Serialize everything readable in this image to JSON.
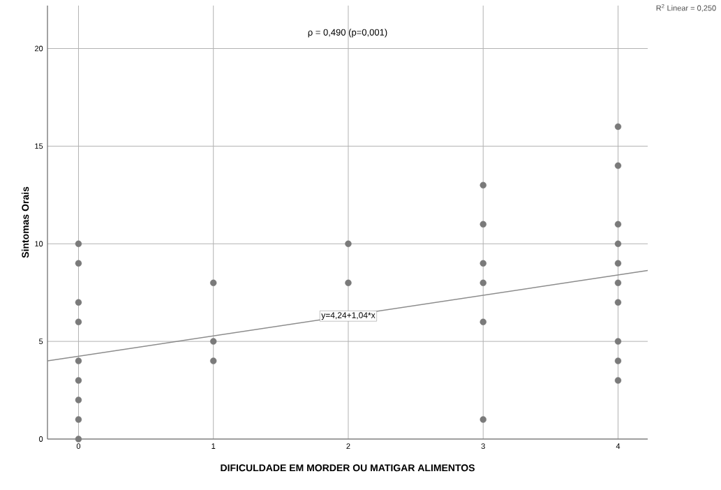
{
  "chart_data": {
    "type": "scatter",
    "xlabel": "DIFICULDADE EM MORDER OU MATIGAR ALIMENTOS",
    "ylabel": "Sintomas Orais",
    "xlim": [
      -0.23,
      4.22
    ],
    "ylim": [
      0,
      22.2
    ],
    "xticks": [
      0,
      1,
      2,
      3,
      4
    ],
    "yticks": [
      0,
      5,
      10,
      15,
      20
    ],
    "grid": true,
    "marker": "circle",
    "series": [
      {
        "color": "#7a7a7a",
        "x": [
          0,
          0,
          0,
          0,
          0,
          0,
          0,
          0,
          0,
          1,
          1,
          1,
          2,
          2,
          3,
          3,
          3,
          3,
          3,
          3,
          4,
          4,
          4,
          4,
          4,
          4,
          4,
          4,
          4,
          4
        ],
        "values": [
          10,
          9,
          7,
          6,
          4,
          3,
          2,
          1,
          0,
          8,
          5,
          4,
          10,
          8,
          13,
          11,
          9,
          8,
          6,
          1,
          16,
          14,
          11,
          10,
          9,
          8,
          7,
          5,
          4,
          3
        ]
      },
      {
        "type": "line",
        "marker": "none",
        "color": "#8c8c8c",
        "x": [
          -0.23,
          4.22
        ],
        "values": [
          4.0,
          8.63
        ]
      }
    ],
    "annotations": [
      "ρ = 0,490 (p=0,001)",
      "R$^{2}$ Linear = 0,250",
      {
        "text": "y=4,24+1,04*x",
        "x": 2,
        "y": 6.3
      }
    ]
  }
}
